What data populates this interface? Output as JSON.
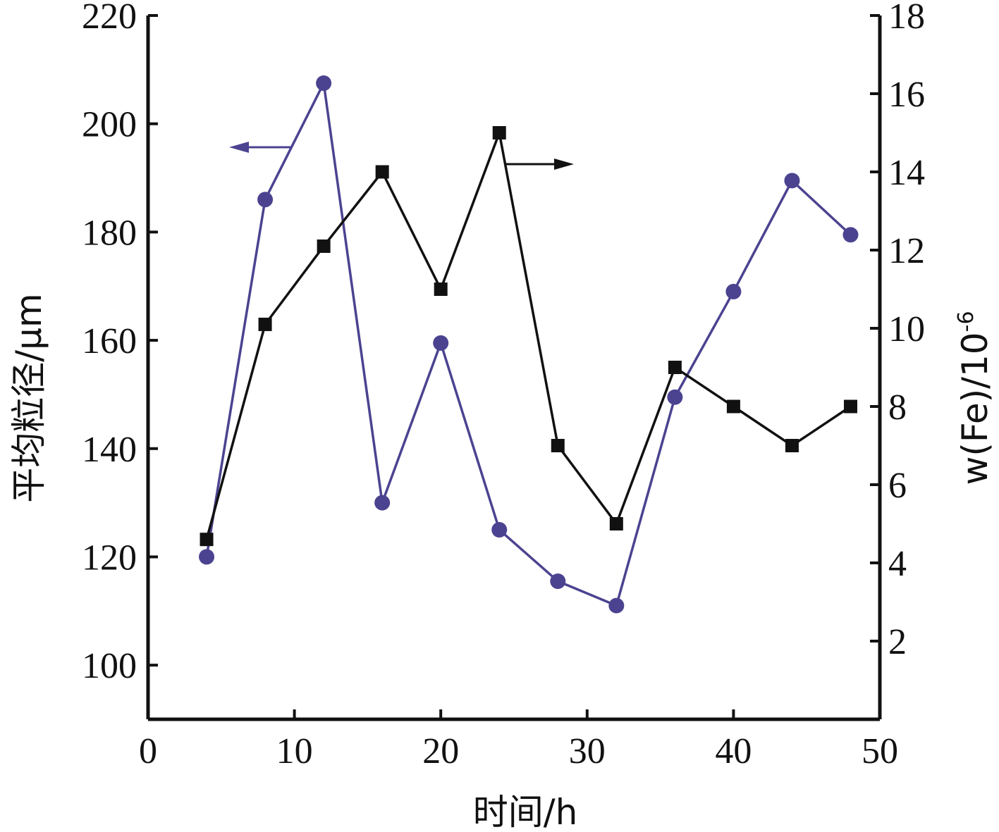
{
  "chart_data": {
    "type": "line",
    "xlabel": "时间/h",
    "ylabel_left": "平均粒径/μm",
    "ylabel_right": "w(Fe)/10",
    "ylabel_right_sup": "-6",
    "xlim": [
      0,
      50
    ],
    "ylim_left": [
      90,
      220
    ],
    "ylim_right": [
      0,
      18
    ],
    "x_ticks": [
      0,
      10,
      20,
      30,
      40,
      50
    ],
    "y_left_ticks": [
      100,
      120,
      140,
      160,
      180,
      200,
      220
    ],
    "y_right_ticks": [
      2,
      4,
      6,
      8,
      10,
      12,
      14,
      16,
      18
    ],
    "grid": false,
    "series": [
      {
        "axis": "left",
        "marker": "circle",
        "color": "#4b4390",
        "x": [
          4,
          8,
          12,
          16,
          20,
          24,
          28,
          32,
          36,
          40,
          44,
          48
        ],
        "values": [
          120,
          186,
          207.5,
          130,
          159.5,
          125,
          115.5,
          111,
          149.5,
          169,
          189.5,
          179.5
        ]
      },
      {
        "axis": "right",
        "marker": "square",
        "color": "#111111",
        "x": [
          4,
          8,
          12,
          16,
          20,
          24,
          28,
          32,
          36,
          40,
          44,
          48
        ],
        "values": [
          4.6,
          10.1,
          12.1,
          14,
          11,
          15,
          7,
          5,
          9,
          8,
          7,
          8
        ]
      }
    ]
  }
}
